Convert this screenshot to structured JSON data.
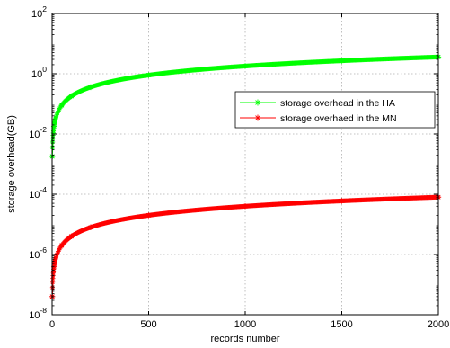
{
  "chart_data": {
    "type": "line",
    "xlabel": "records number",
    "ylabel": "storage overhead(GB)",
    "xlim": [
      0,
      2000
    ],
    "ylim": [
      1e-08,
      100
    ],
    "yscale": "log",
    "grid": true,
    "legend_position": "right",
    "x_ticks": [
      {
        "value": 0,
        "label": "0"
      },
      {
        "value": 500,
        "label": "500"
      },
      {
        "value": 1000,
        "label": "1000"
      },
      {
        "value": 1500,
        "label": "1500"
      },
      {
        "value": 2000,
        "label": "2000"
      }
    ],
    "y_ticks": [
      {
        "value": 1e-08,
        "base": "10",
        "exp": "-8"
      },
      {
        "value": 1e-06,
        "base": "10",
        "exp": "-6"
      },
      {
        "value": 0.0001,
        "base": "10",
        "exp": "-4"
      },
      {
        "value": 0.01,
        "base": "10",
        "exp": "-2"
      },
      {
        "value": 1,
        "base": "10",
        "exp": "0"
      },
      {
        "value": 100,
        "base": "10",
        "exp": "2"
      }
    ],
    "series": [
      {
        "name": "storage overhead in the HA",
        "color": "#00ff00",
        "marker": "asterisk",
        "x": [
          1,
          10,
          50,
          100,
          200,
          500,
          1000,
          1500,
          2000
        ],
        "y": [
          0.0018,
          0.018,
          0.09,
          0.18,
          0.36,
          0.9,
          1.8,
          2.7,
          3.6
        ]
      },
      {
        "name": "storage overhaed in the MN",
        "color": "#ff0000",
        "marker": "asterisk",
        "x": [
          1,
          10,
          50,
          100,
          200,
          500,
          1000,
          1500,
          2000
        ],
        "y": [
          4e-08,
          4e-07,
          2e-06,
          4e-06,
          8e-06,
          2e-05,
          4e-05,
          6e-05,
          8e-05
        ]
      }
    ]
  }
}
